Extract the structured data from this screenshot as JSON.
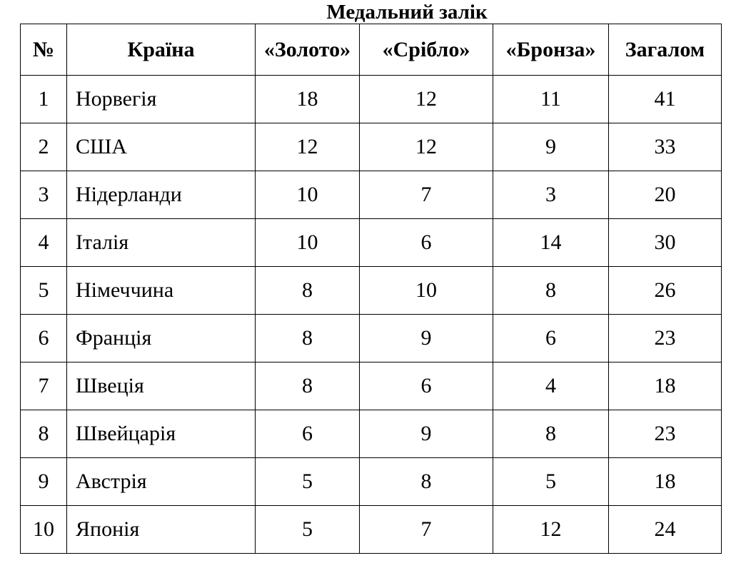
{
  "title": "Медальний залік",
  "table": {
    "header": [
      "№",
      "Країна",
      "«Золото»",
      "«Срібло»",
      "«Бронза»",
      "Загалом"
    ],
    "rows": [
      [
        1,
        "Норвегія",
        18,
        12,
        11,
        41
      ],
      [
        2,
        "США",
        12,
        12,
        9,
        33
      ],
      [
        3,
        "Нідерланди",
        10,
        7,
        3,
        20
      ],
      [
        4,
        "Італія",
        10,
        6,
        14,
        30
      ],
      [
        5,
        "Німеччина",
        8,
        10,
        8,
        26
      ],
      [
        6,
        "Франція",
        8,
        9,
        6,
        23
      ],
      [
        7,
        "Швеція",
        8,
        6,
        4,
        18
      ],
      [
        8,
        "Швейцарія",
        6,
        9,
        8,
        23
      ],
      [
        9,
        "Австрія",
        5,
        8,
        5,
        18
      ],
      [
        10,
        "Японія",
        5,
        7,
        12,
        24
      ]
    ]
  }
}
